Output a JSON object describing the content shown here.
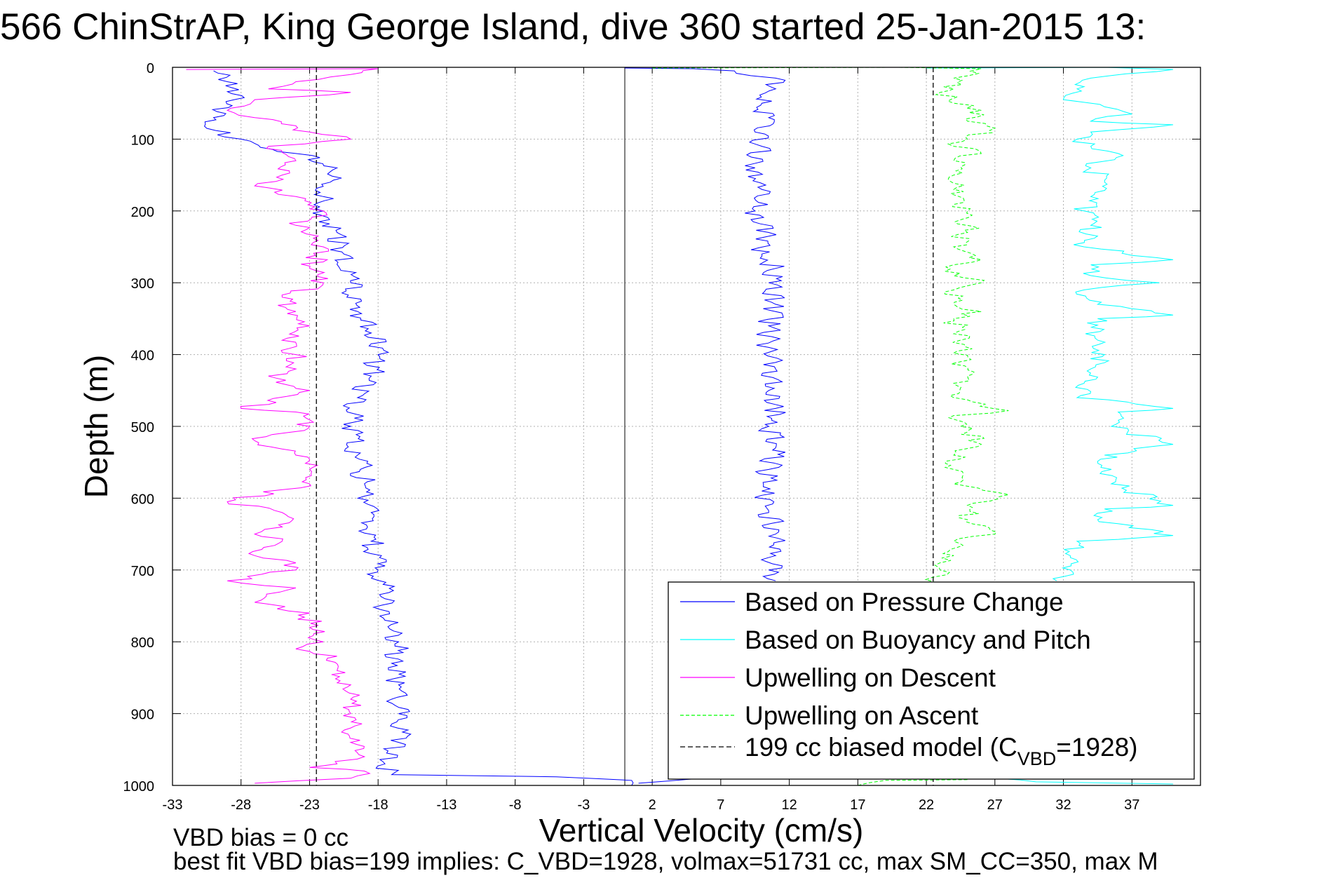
{
  "chart_data": {
    "type": "line",
    "title": "566 ChinStrAP, King George Island, dive 360 started 25-Jan-2015 13:",
    "xlabel": "Vertical Velocity (cm/s)",
    "ylabel": "Depth (m)",
    "xlim": [
      -33,
      42
    ],
    "ylim": [
      0,
      1000
    ],
    "y_reversed": true,
    "grid": true,
    "x_ticks": [
      -33,
      -28,
      -23,
      -18,
      -13,
      -8,
      -3,
      2,
      7,
      12,
      17,
      22,
      27,
      32,
      37
    ],
    "y_ticks": [
      0,
      100,
      200,
      300,
      400,
      500,
      600,
      700,
      800,
      900,
      1000
    ],
    "legend_position": "bottom-right",
    "series": [
      {
        "name": "Based on Pressure Change",
        "color": "#0000ff",
        "style": "solid",
        "points": [
          [
            [
              -30,
              5
            ],
            [
              -29,
              20
            ],
            [
              -28.5,
              45
            ],
            [
              -30,
              70
            ],
            [
              -30.5,
              85
            ],
            [
              -28,
              100
            ],
            [
              -24,
              120
            ],
            [
              -21,
              140
            ],
            [
              -21.5,
              160
            ],
            [
              -22,
              180
            ],
            [
              -22,
              200
            ],
            [
              -21,
              230
            ],
            [
              -20.5,
              260
            ],
            [
              -20,
              300
            ],
            [
              -19.5,
              340
            ],
            [
              -18.5,
              370
            ],
            [
              -18,
              400
            ],
            [
              -18.5,
              430
            ],
            [
              -19.5,
              460
            ],
            [
              -20,
              500
            ],
            [
              -19.5,
              540
            ],
            [
              -19,
              580
            ],
            [
              -18.5,
              620
            ],
            [
              -18.5,
              660
            ],
            [
              -18,
              700
            ],
            [
              -17.5,
              740
            ],
            [
              -17.5,
              770
            ],
            [
              -16.5,
              800
            ],
            [
              -17,
              830
            ],
            [
              -16.5,
              860
            ],
            [
              -16.5,
              900
            ],
            [
              -16.5,
              940
            ],
            [
              -17.5,
              970
            ],
            [
              -17,
              985
            ],
            [
              -5,
              988
            ],
            [
              0.5,
              993
            ],
            [
              0.5,
              1000
            ]
          ],
          [
            [
              1,
              997
            ],
            [
              5,
              991
            ],
            [
              9,
              988
            ]
          ],
          [
            [
              0,
              1
            ],
            [
              5,
              2
            ],
            [
              8,
              5
            ],
            [
              11,
              15
            ],
            [
              11,
              30
            ],
            [
              10,
              50
            ],
            [
              10.5,
              70
            ],
            [
              9.5,
              90
            ],
            [
              10,
              110
            ],
            [
              9.5,
              140
            ],
            [
              10,
              170
            ],
            [
              9.5,
              200
            ],
            [
              10.5,
              230
            ],
            [
              10,
              260
            ],
            [
              11,
              280
            ],
            [
              10.5,
              300
            ],
            [
              11,
              330
            ],
            [
              10.5,
              360
            ],
            [
              10.5,
              390
            ],
            [
              11,
              420
            ],
            [
              10.5,
              450
            ],
            [
              11,
              475
            ],
            [
              10.5,
              500
            ],
            [
              11,
              530
            ],
            [
              10.5,
              560
            ],
            [
              10,
              590
            ],
            [
              10.5,
              620
            ],
            [
              11,
              650
            ],
            [
              11,
              680
            ],
            [
              10.5,
              700
            ],
            [
              11,
              715
            ]
          ]
        ]
      },
      {
        "name": "Based on Buoyancy and Pitch",
        "color": "#00ffff",
        "style": "solid",
        "points": [
          [
            [
              22,
              1
            ],
            [
              35,
              0
            ],
            [
              40,
              3
            ],
            [
              34,
              15
            ],
            [
              33,
              30
            ],
            [
              32,
              45
            ],
            [
              35,
              55
            ],
            [
              37,
              65
            ],
            [
              34,
              75
            ],
            [
              40,
              80
            ],
            [
              34,
              90
            ],
            [
              33,
              100
            ],
            [
              34,
              110
            ],
            [
              36,
              120
            ],
            [
              34,
              140
            ],
            [
              35,
              160
            ],
            [
              34,
              180
            ],
            [
              33.5,
              200
            ],
            [
              34,
              220
            ],
            [
              33.5,
              250
            ],
            [
              40,
              268
            ],
            [
              34,
              275
            ],
            [
              34,
              290
            ],
            [
              39,
              300
            ],
            [
              33.5,
              310
            ],
            [
              34.5,
              330
            ],
            [
              40,
              345
            ],
            [
              34.5,
              350
            ],
            [
              34.5,
              380
            ],
            [
              35,
              400
            ],
            [
              34,
              420
            ],
            [
              33.5,
              440
            ],
            [
              33,
              460
            ],
            [
              40,
              475
            ],
            [
              36,
              480
            ],
            [
              35.5,
              500
            ],
            [
              40,
              525
            ],
            [
              35,
              540
            ],
            [
              35.5,
              560
            ],
            [
              35.5,
              580
            ],
            [
              40,
              610
            ],
            [
              35,
              615
            ],
            [
              34.5,
              630
            ],
            [
              40,
              652
            ],
            [
              33,
              660
            ],
            [
              32.5,
              680
            ],
            [
              32.5,
              700
            ],
            [
              31.5,
              715
            ]
          ],
          [
            [
              27,
              990
            ],
            [
              30,
              995
            ],
            [
              40,
              998
            ]
          ]
        ]
      },
      {
        "name": "Upwelling on Descent",
        "color": "#ff00ff",
        "style": "solid",
        "points": [
          [
            [
              -32,
              3
            ],
            [
              -18,
              2
            ],
            [
              -20,
              10
            ],
            [
              -24,
              20
            ],
            [
              -26,
              30
            ],
            [
              -20,
              35
            ],
            [
              -27,
              45
            ],
            [
              -29,
              60
            ],
            [
              -27,
              70
            ],
            [
              -23,
              90
            ],
            [
              -20,
              100
            ],
            [
              -26,
              110
            ],
            [
              -24,
              130
            ],
            [
              -25,
              150
            ],
            [
              -27,
              165
            ],
            [
              -24,
              180
            ],
            [
              -22,
              200
            ],
            [
              -24,
              220
            ],
            [
              -22,
              250
            ],
            [
              -23,
              280
            ],
            [
              -22,
              300
            ],
            [
              -25,
              320
            ],
            [
              -24,
              340
            ],
            [
              -23,
              360
            ],
            [
              -25,
              380
            ],
            [
              -24,
              400
            ],
            [
              -24,
              420
            ],
            [
              -26,
              430
            ],
            [
              -23,
              450
            ],
            [
              -28,
              475
            ],
            [
              -24,
              480
            ],
            [
              -23,
              500
            ],
            [
              -27,
              520
            ],
            [
              -24,
              540
            ],
            [
              -23,
              560
            ],
            [
              -23,
              580
            ],
            [
              -29,
              605
            ],
            [
              -25,
              620
            ],
            [
              -25,
              640
            ],
            [
              -27,
              650
            ],
            [
              -25,
              660
            ],
            [
              -27,
              680
            ],
            [
              -24,
              690
            ],
            [
              -24,
              700
            ],
            [
              -29,
              715
            ],
            [
              -24,
              725
            ],
            [
              -27,
              745
            ],
            [
              -23,
              760
            ],
            [
              -23,
              780
            ],
            [
              -22,
              800
            ],
            [
              -24,
              810
            ],
            [
              -21,
              820
            ],
            [
              -21,
              840
            ],
            [
              -20,
              860
            ],
            [
              -20,
              880
            ],
            [
              -20,
              900
            ],
            [
              -20,
              920
            ],
            [
              -20,
              940
            ],
            [
              -19,
              960
            ],
            [
              -21,
              970
            ],
            [
              -23,
              975
            ],
            [
              -19,
              980
            ],
            [
              -20,
              990
            ],
            [
              -27,
              997
            ]
          ]
        ]
      },
      {
        "name": "Upwelling on Ascent",
        "color": "#00ff00",
        "style": "dashed",
        "points": [
          [
            [
              2,
              1
            ],
            [
              20,
              0
            ],
            [
              26,
              2
            ],
            [
              24,
              15
            ],
            [
              24,
              30
            ],
            [
              23,
              35
            ],
            [
              24,
              50
            ],
            [
              26,
              60
            ],
            [
              25,
              75
            ],
            [
              27,
              85
            ],
            [
              25,
              100
            ],
            [
              24,
              110
            ],
            [
              26,
              120
            ],
            [
              24,
              130
            ],
            [
              24,
              150
            ],
            [
              24,
              170
            ],
            [
              25,
              200
            ],
            [
              25,
              230
            ],
            [
              24,
              250
            ],
            [
              26,
              268
            ],
            [
              24,
              275
            ],
            [
              24,
              290
            ],
            [
              26,
              300
            ],
            [
              24,
              310
            ],
            [
              24,
              330
            ],
            [
              26,
              340
            ],
            [
              24,
              350
            ],
            [
              24.5,
              380
            ],
            [
              24.5,
              410
            ],
            [
              25,
              430
            ],
            [
              24,
              440
            ],
            [
              24,
              460
            ],
            [
              28,
              478
            ],
            [
              24,
              485
            ],
            [
              24.5,
              500
            ],
            [
              26,
              525
            ],
            [
              24,
              540
            ],
            [
              24,
              560
            ],
            [
              24,
              580
            ],
            [
              28,
              595
            ],
            [
              25,
              610
            ],
            [
              25,
              630
            ],
            [
              27,
              650
            ],
            [
              24,
              660
            ],
            [
              24,
              680
            ],
            [
              23,
              690
            ],
            [
              23,
              700
            ],
            [
              22.5,
              710
            ],
            [
              23,
              720
            ]
          ],
          [
            [
              17,
              1000
            ],
            [
              19,
              993
            ],
            [
              25,
              992
            ]
          ]
        ]
      },
      {
        "name": "199 cc biased model (C_VBD=1928)",
        "label_main": "199 cc biased model (C",
        "label_sub": "VBD",
        "label_end": "=1928)",
        "color": "#000000",
        "style": "dashed",
        "points": [
          [
            [
              -22.5,
              0
            ],
            [
              -22.5,
              1000
            ]
          ],
          [
            [
              22.5,
              0
            ],
            [
              22.5,
              1000
            ]
          ]
        ]
      }
    ],
    "reference_line_x": 0
  },
  "annotations": {
    "line1": "VBD bias = 0 cc",
    "line2": "best fit VBD bias=199 implies: C_VBD=1928, volmax=51731 cc, max SM_CC=350, max M"
  }
}
